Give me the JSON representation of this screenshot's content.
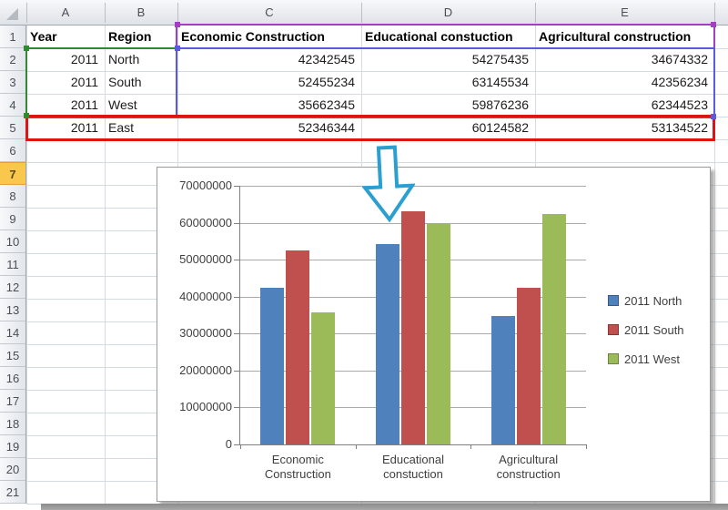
{
  "spreadsheet": {
    "column_headers": [
      "A",
      "B",
      "C",
      "D",
      "E"
    ],
    "row_headers": [
      "1",
      "2",
      "3",
      "4",
      "5",
      "6",
      "7",
      "8",
      "9",
      "10",
      "11",
      "12",
      "13",
      "14",
      "15",
      "16",
      "17",
      "18",
      "19",
      "20",
      "21"
    ],
    "highlighted_row_header": "7",
    "table": {
      "columns": [
        "Year",
        "Region",
        "Economic Construction",
        "Educational constuction",
        "Agricultural construction"
      ],
      "rows": [
        [
          "2011",
          "North",
          "42342545",
          "54275435",
          "34674332"
        ],
        [
          "2011",
          "South",
          "52455234",
          "63145534",
          "42356234"
        ],
        [
          "2011",
          "West",
          "35662345",
          "59876236",
          "62344523"
        ],
        [
          "2011",
          "East",
          "52346344",
          "60124582",
          "53134522"
        ]
      ]
    }
  },
  "chart_data": {
    "type": "bar",
    "categories": [
      "Economic Construction",
      "Educational constuction",
      "Agricultural construction"
    ],
    "series": [
      {
        "name": "2011 North",
        "color": "#4F81BD",
        "values": [
          42342545,
          54275435,
          34674332
        ]
      },
      {
        "name": "2011 South",
        "color": "#C0504D",
        "values": [
          52455234,
          63145534,
          42356234
        ]
      },
      {
        "name": "2011 West",
        "color": "#9BBB59",
        "values": [
          35662345,
          59876236,
          62344523
        ]
      }
    ],
    "title": "",
    "xlabel": "",
    "ylabel": "",
    "ylim": [
      0,
      70000000
    ],
    "ytick_labels": [
      "0",
      "10000000",
      "20000000",
      "30000000",
      "40000000",
      "50000000",
      "60000000",
      "70000000"
    ],
    "grid": true,
    "legend_position": "right"
  },
  "colors": {
    "range_red": "#dc1414",
    "range_green": "#2e8b2e",
    "range_blue": "#5a5ae0",
    "range_purple": "#a13ec2",
    "row_highlight": "#f9c74c",
    "arrow": "#2ba0d0",
    "series_blue": "#4F81BD",
    "series_red": "#C0504D",
    "series_green": "#9BBB59"
  }
}
